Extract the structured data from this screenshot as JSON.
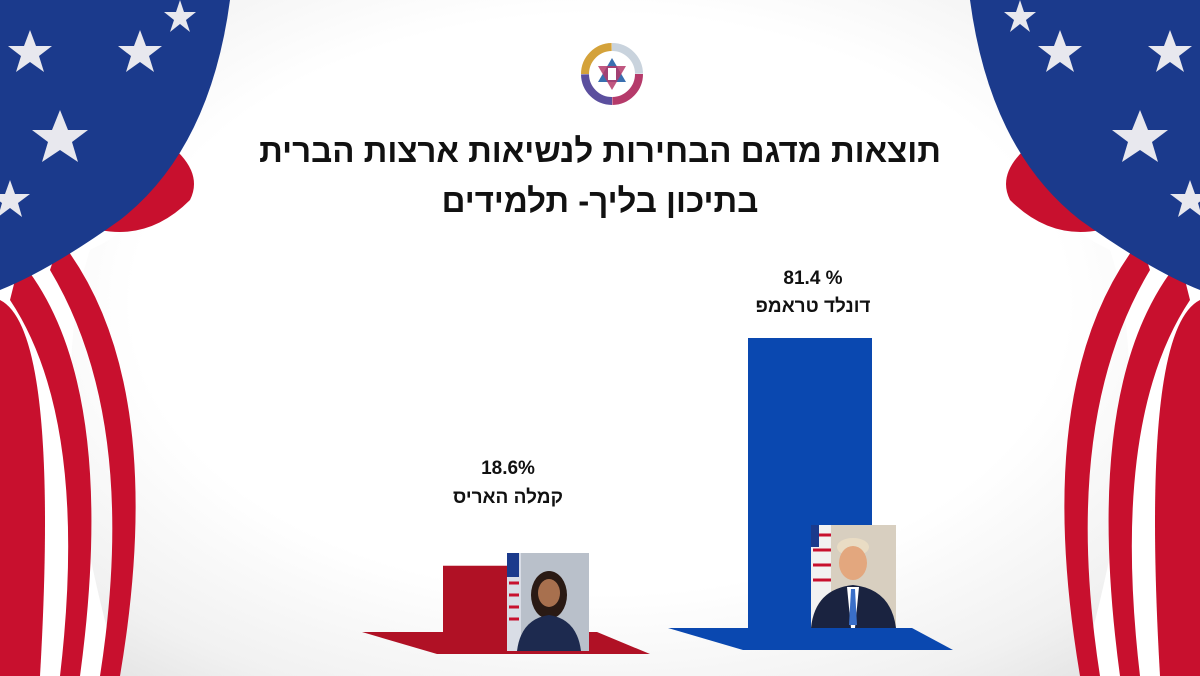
{
  "title_line1": "תוצאות מדגם הבחירות לנשיאות ארצות הברית",
  "title_line2": "בתיכון בליך- תלמידים",
  "logo": "school-logo",
  "chart_data": {
    "type": "bar",
    "categories": [
      "קמלה האריס",
      "דונלד טראמפ"
    ],
    "values": [
      18.6,
      81.4
    ],
    "value_labels": [
      "18.6%",
      "81.4 %"
    ],
    "colors": [
      "#b01125",
      "#0a48b0"
    ],
    "unit": "%",
    "grid": false,
    "legend": "none"
  },
  "background": {
    "decoration": "american-flag-corners",
    "flag_red": "#c8102e",
    "flag_blue": "#1b3a8c"
  }
}
